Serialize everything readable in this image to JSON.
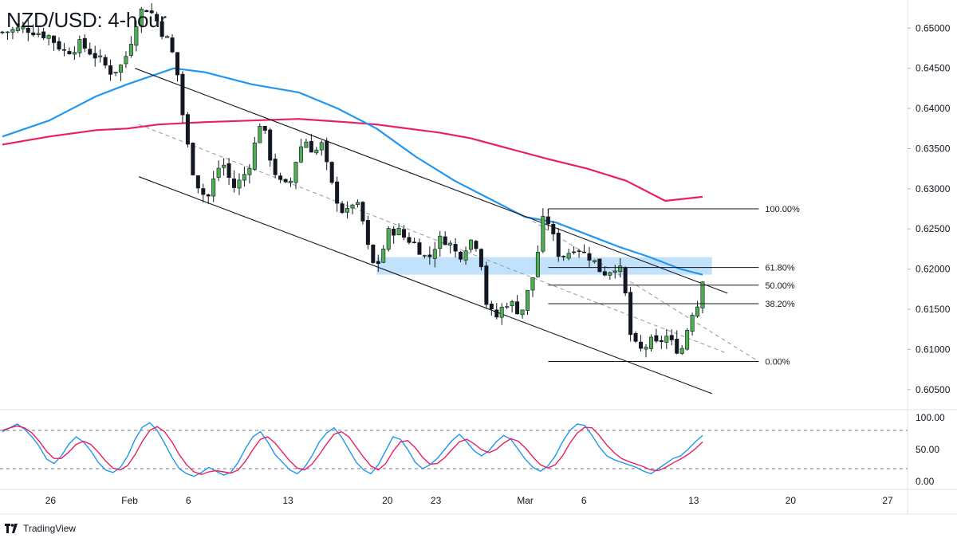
{
  "page": {
    "title": "NZD/USD: 4-hour",
    "brand": "TradingView"
  },
  "colors": {
    "up_candle": "#26a69a",
    "up_candle_fill": "#4caf50",
    "down_candle": "#131722",
    "sma_fast": "#2196f3",
    "sma_slow": "#e91e63",
    "stoch_k": "#2196f3",
    "stoch_d": "#e91e63",
    "zone": "#90caf9",
    "channel": "#131722",
    "fib": "#131722"
  },
  "chart_data": [
    {
      "type": "candlestick",
      "symbol": "NZD/USD",
      "timeframe": "4-hour",
      "ylim": [
        0.6025,
        0.6535
      ],
      "y_ticks": [
        0.605,
        0.61,
        0.615,
        0.62,
        0.625,
        0.63,
        0.635,
        0.64,
        0.645,
        0.65
      ],
      "y_tick_labels": [
        "0.60500",
        "0.61000",
        "0.61500",
        "0.62000",
        "0.62500",
        "0.63000",
        "0.63500",
        "0.64000",
        "0.64500",
        "0.65000"
      ],
      "x_tick_labels": [
        "26",
        "Feb",
        "6",
        "13",
        "20",
        "23",
        "Mar",
        "6",
        "13",
        "20",
        "27"
      ],
      "price_path": [
        [
          0,
          0.6495
        ],
        [
          3,
          0.65
        ],
        [
          6,
          0.649
        ],
        [
          8,
          0.647
        ],
        [
          10,
          0.648
        ],
        [
          12,
          0.6465
        ],
        [
          14,
          0.6445
        ],
        [
          15.5,
          0.6455
        ],
        [
          16.5,
          0.6485
        ],
        [
          17.5,
          0.652
        ],
        [
          18.5,
          0.6525
        ],
        [
          19.5,
          0.6515
        ],
        [
          20.5,
          0.6495
        ],
        [
          21.5,
          0.648
        ],
        [
          22.5,
          0.644
        ],
        [
          23,
          0.64
        ],
        [
          23.6,
          0.636
        ],
        [
          24.5,
          0.632
        ],
        [
          25.5,
          0.6295
        ],
        [
          26.5,
          0.629
        ],
        [
          27.5,
          0.6325
        ],
        [
          28.5,
          0.633
        ],
        [
          29.5,
          0.63
        ],
        [
          30.5,
          0.631
        ],
        [
          31.5,
          0.6325
        ],
        [
          32.5,
          0.636
        ],
        [
          33.2,
          0.639
        ],
        [
          34,
          0.635
        ],
        [
          35,
          0.632
        ],
        [
          36,
          0.63
        ],
        [
          37,
          0.631
        ],
        [
          38,
          0.635
        ],
        [
          39,
          0.636
        ],
        [
          40,
          0.6345
        ],
        [
          41,
          0.6355
        ],
        [
          42,
          0.631
        ],
        [
          43,
          0.6285
        ],
        [
          44,
          0.6265
        ],
        [
          45,
          0.6285
        ],
        [
          46,
          0.627
        ],
        [
          47,
          0.622
        ],
        [
          47.8,
          0.62
        ],
        [
          48.5,
          0.6215
        ],
        [
          49.5,
          0.6245
        ],
        [
          50.5,
          0.625
        ],
        [
          51.5,
          0.624
        ],
        [
          52.5,
          0.6235
        ],
        [
          53.5,
          0.6225
        ],
        [
          54.5,
          0.621
        ],
        [
          55.5,
          0.623
        ],
        [
          56.5,
          0.624
        ],
        [
          57.5,
          0.623
        ],
        [
          58.5,
          0.6215
        ],
        [
          59.5,
          0.623
        ],
        [
          60.5,
          0.624
        ],
        [
          61.5,
          0.6205
        ],
        [
          62,
          0.616
        ],
        [
          62.7,
          0.6145
        ],
        [
          63.5,
          0.614
        ],
        [
          64.5,
          0.616
        ],
        [
          65.5,
          0.6155
        ],
        [
          66.5,
          0.6145
        ],
        [
          67.5,
          0.6175
        ],
        [
          68.5,
          0.6205
        ],
        [
          69,
          0.6255
        ],
        [
          69.8,
          0.6265
        ],
        [
          70.6,
          0.624
        ],
        [
          71.5,
          0.6215
        ],
        [
          72.5,
          0.622
        ],
        [
          73.5,
          0.623
        ],
        [
          74.5,
          0.622
        ],
        [
          75.5,
          0.6215
        ],
        [
          76.5,
          0.62
        ],
        [
          77.5,
          0.6195
        ],
        [
          78.5,
          0.6205
        ],
        [
          79.5,
          0.6195
        ],
        [
          80,
          0.616
        ],
        [
          80.5,
          0.612
        ],
        [
          81,
          0.6105
        ],
        [
          82,
          0.6098
        ],
        [
          83,
          0.611
        ],
        [
          84,
          0.6105
        ],
        [
          85,
          0.6118
        ],
        [
          86,
          0.6105
        ],
        [
          87,
          0.6098
        ],
        [
          87.6,
          0.6112
        ],
        [
          88.2,
          0.615
        ],
        [
          88.8,
          0.6145
        ],
        [
          89.3,
          0.616
        ],
        [
          89.8,
          0.619
        ]
      ],
      "sma_fast": [
        [
          0,
          0.6365
        ],
        [
          6,
          0.6385
        ],
        [
          12,
          0.6415
        ],
        [
          16,
          0.643
        ],
        [
          19,
          0.644
        ],
        [
          22,
          0.645
        ],
        [
          26,
          0.6445
        ],
        [
          32,
          0.643
        ],
        [
          38,
          0.642
        ],
        [
          43,
          0.64
        ],
        [
          48,
          0.6375
        ],
        [
          53,
          0.634
        ],
        [
          58,
          0.631
        ],
        [
          63,
          0.6285
        ],
        [
          67,
          0.6265
        ],
        [
          71,
          0.6258
        ],
        [
          75,
          0.6243
        ],
        [
          79,
          0.6228
        ],
        [
          83,
          0.6215
        ],
        [
          87,
          0.62
        ],
        [
          89.8,
          0.6193
        ]
      ],
      "sma_slow": [
        [
          0,
          0.6355
        ],
        [
          6,
          0.6365
        ],
        [
          12,
          0.6373
        ],
        [
          16,
          0.6375
        ],
        [
          20,
          0.638
        ],
        [
          26,
          0.6383
        ],
        [
          32,
          0.6385
        ],
        [
          38,
          0.6387
        ],
        [
          44,
          0.6383
        ],
        [
          48,
          0.638
        ],
        [
          52,
          0.6375
        ],
        [
          56,
          0.637
        ],
        [
          60,
          0.6363
        ],
        [
          65,
          0.635
        ],
        [
          70,
          0.6337
        ],
        [
          75,
          0.6325
        ],
        [
          80,
          0.631
        ],
        [
          85,
          0.6285
        ],
        [
          89.8,
          0.629
        ]
      ],
      "channel_upper": [
        [
          17,
          0.645
        ],
        [
          93,
          0.617
        ]
      ],
      "channel_lower": [
        [
          17.5,
          0.6315
        ],
        [
          91,
          0.6045
        ]
      ],
      "channel_mid": [
        [
          17.5,
          0.638
        ],
        [
          93,
          0.6095
        ]
      ],
      "channel_mid_2": [
        [
          68,
          0.626
        ],
        [
          97,
          0.6085
        ]
      ],
      "resistance_zone": {
        "from": 0.6193,
        "to": 0.6215,
        "x_start": 48,
        "x_end": 91
      },
      "fibonacci": {
        "x_start": 70,
        "x_end": 97,
        "levels": [
          {
            "label": "100.00%",
            "price": 0.6275
          },
          {
            "label": "61.80%",
            "price": 0.6202
          },
          {
            "label": "50.00%",
            "price": 0.618
          },
          {
            "label": "38.20%",
            "price": 0.6157
          },
          {
            "label": "0.00%",
            "price": 0.6085
          }
        ]
      }
    },
    {
      "type": "line",
      "name": "stochastic",
      "ylim": [
        0,
        100
      ],
      "y_tick_labels": [
        "100.00",
        "50.00",
        "0.00"
      ],
      "y_ticks": [
        100,
        50,
        0
      ],
      "overbought": 80,
      "oversold": 20,
      "series": [
        {
          "values": [
            78,
            84,
            90,
            82,
            70,
            55,
            35,
            28,
            40,
            58,
            70,
            62,
            48,
            30,
            18,
            14,
            22,
            40,
            66,
            85,
            92,
            80,
            60,
            38,
            20,
            12,
            8,
            14,
            22,
            16,
            10,
            14,
            30,
            52,
            70,
            78,
            62,
            42,
            30,
            18,
            12,
            22,
            40,
            62,
            76,
            84,
            70,
            50,
            30,
            18,
            12,
            26,
            48,
            70,
            66,
            50,
            30,
            20,
            26,
            36,
            50,
            64,
            74,
            62,
            48,
            40,
            48,
            62,
            72,
            66,
            50,
            34,
            22,
            16,
            24,
            40,
            62,
            80,
            90,
            88,
            72,
            54,
            40,
            34,
            30,
            26,
            22,
            16,
            12,
            20,
            28,
            36,
            40,
            50,
            62,
            72
          ]
        },
        {
          "values": [
            80,
            84,
            87,
            84,
            76,
            63,
            47,
            36,
            36,
            46,
            58,
            63,
            58,
            46,
            32,
            21,
            18,
            25,
            42,
            63,
            80,
            86,
            78,
            62,
            42,
            26,
            15,
            11,
            15,
            17,
            15,
            13,
            18,
            32,
            50,
            66,
            70,
            60,
            46,
            32,
            21,
            18,
            27,
            42,
            59,
            74,
            78,
            70,
            54,
            38,
            24,
            18,
            28,
            47,
            62,
            64,
            53,
            38,
            27,
            28,
            37,
            50,
            62,
            66,
            59,
            50,
            45,
            50,
            60,
            67,
            63,
            52,
            38,
            26,
            21,
            26,
            40,
            60,
            76,
            85,
            84,
            72,
            57,
            45,
            36,
            31,
            27,
            23,
            18,
            17,
            22,
            29,
            35,
            42,
            51,
            62
          ]
        }
      ]
    }
  ]
}
